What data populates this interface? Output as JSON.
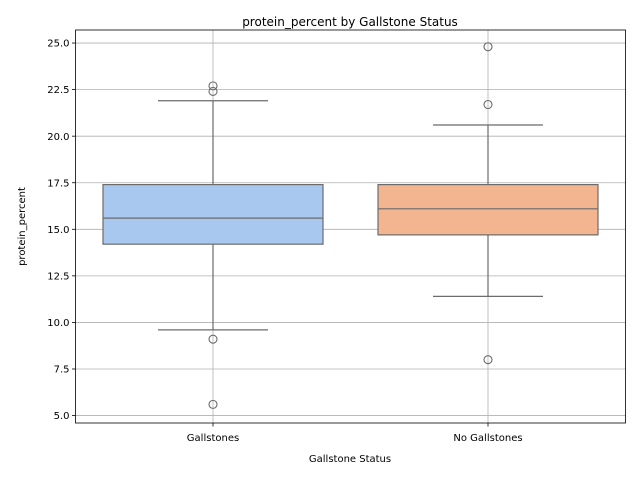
{
  "chart_data": {
    "type": "box",
    "title": "protein_percent by Gallstone Status",
    "xlabel": "Gallstone Status",
    "ylabel": "protein_percent",
    "ylim": [
      4.6,
      25.7
    ],
    "yticks": [
      5.0,
      7.5,
      10.0,
      12.5,
      15.0,
      17.5,
      20.0,
      22.5,
      25.0
    ],
    "ytick_labels": [
      "5.0",
      "7.5",
      "10.0",
      "12.5",
      "15.0",
      "17.5",
      "20.0",
      "22.5",
      "25.0"
    ],
    "categories": [
      "Gallstones",
      "No Gallstones"
    ],
    "grid": true,
    "boxes": [
      {
        "category": "Gallstones",
        "color": "#a9c8ef",
        "whisker_low": 9.6,
        "q1": 14.2,
        "median": 15.6,
        "q3": 17.4,
        "whisker_high": 21.9,
        "outliers": [
          22.7,
          22.4,
          9.1,
          5.6
        ]
      },
      {
        "category": "No Gallstones",
        "color": "#f3b58f",
        "whisker_low": 11.4,
        "q1": 14.7,
        "median": 16.1,
        "q3": 17.4,
        "whisker_high": 20.6,
        "outliers": [
          24.8,
          21.7,
          8.0
        ]
      }
    ]
  }
}
